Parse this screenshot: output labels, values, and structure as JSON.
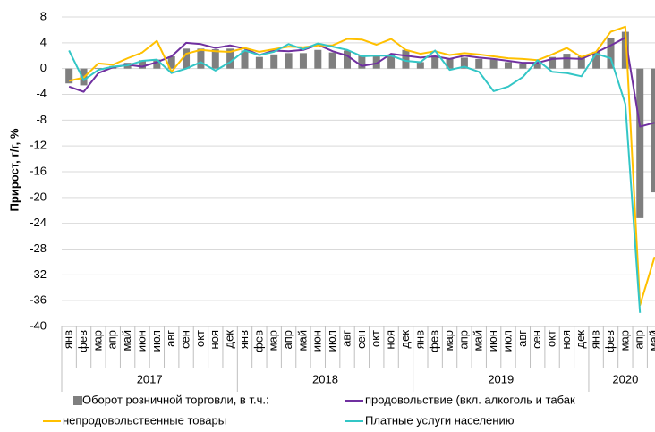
{
  "chart_data": {
    "type": "bar_line",
    "y_label": "Прирост, г/г, %",
    "category_groups": [
      {
        "label": "2017",
        "categories": [
          "янв",
          "фев",
          "мар",
          "апр",
          "май",
          "июн",
          "июл",
          "авг",
          "сен",
          "окт",
          "ноя",
          "дек"
        ]
      },
      {
        "label": "2018",
        "categories": [
          "янв",
          "фев",
          "мар",
          "апр",
          "май",
          "июн",
          "июл",
          "авг",
          "сен",
          "окт",
          "ноя",
          "дек"
        ]
      },
      {
        "label": "2019",
        "categories": [
          "янв",
          "фев",
          "мар",
          "апр",
          "май",
          "июн",
          "июл",
          "авг",
          "сен",
          "окт",
          "ноя",
          "дек"
        ]
      },
      {
        "label": "2020",
        "categories": [
          "янв",
          "фев",
          "мар",
          "апр",
          "май"
        ]
      }
    ],
    "ylim": [
      -40,
      8
    ],
    "yticks": [
      8,
      4,
      0,
      -4,
      -8,
      -12,
      -16,
      -20,
      -24,
      -28,
      -32,
      -36,
      -40
    ],
    "grid": true,
    "series": [
      {
        "name": "Оборот розничной торговли, в т.ч.:",
        "kind": "bar",
        "color": "#7f7f7f",
        "values": [
          -2.3,
          -2.6,
          0.1,
          0.4,
          0.9,
          1.3,
          1.4,
          1.9,
          3.1,
          3.1,
          3.0,
          3.1,
          2.8,
          1.8,
          2.2,
          2.4,
          2.4,
          2.9,
          2.5,
          2.8,
          2.1,
          1.9,
          2.2,
          2.9,
          1.0,
          2.0,
          1.6,
          1.7,
          1.5,
          1.4,
          1.0,
          0.8,
          0.7,
          1.8,
          2.3,
          1.9,
          2.6,
          4.7,
          5.7,
          -23.2,
          -19.2
        ]
      },
      {
        "name": "продовольствие (вкл. алкоголь и табак",
        "kind": "line",
        "color": "#7030a0",
        "values": [
          -2.8,
          -3.6,
          -0.7,
          0.2,
          0.6,
          0.3,
          1.0,
          1.9,
          4.0,
          3.8,
          3.2,
          3.6,
          3.1,
          2.1,
          2.8,
          2.7,
          2.9,
          3.7,
          2.7,
          2.0,
          0.4,
          0.8,
          2.3,
          2.0,
          1.7,
          1.9,
          1.5,
          2.0,
          1.7,
          1.5,
          1.2,
          0.9,
          0.9,
          1.5,
          1.6,
          1.5,
          2.5,
          3.6,
          4.8,
          -9.0,
          -8.4
        ]
      },
      {
        "name": "непродовольственные товары",
        "kind": "line",
        "color": "#ffc000",
        "values": [
          -1.9,
          -1.4,
          0.8,
          0.6,
          1.6,
          2.5,
          4.3,
          -0.5,
          2.3,
          2.9,
          2.7,
          2.6,
          3.2,
          2.6,
          3.0,
          3.4,
          3.3,
          3.6,
          3.6,
          4.6,
          4.5,
          3.7,
          4.6,
          2.9,
          2.3,
          2.7,
          2.1,
          2.4,
          2.2,
          1.9,
          1.6,
          1.5,
          1.3,
          2.2,
          3.2,
          1.8,
          2.6,
          5.7,
          6.5,
          -36.7,
          -29.2
        ]
      },
      {
        "name": "Платные услуги населению",
        "kind": "line",
        "color": "#33c6c6",
        "values": [
          2.8,
          -1.8,
          -0.2,
          0.3,
          0.5,
          1.2,
          1.4,
          -0.7,
          0.0,
          1.0,
          -0.3,
          1.0,
          2.8,
          2.1,
          2.6,
          3.8,
          3.0,
          3.9,
          3.4,
          2.9,
          1.9,
          2.0,
          2.0,
          1.2,
          1.0,
          2.8,
          -0.2,
          0.3,
          -0.5,
          -3.5,
          -2.8,
          -1.3,
          1.3,
          -0.5,
          -0.7,
          -1.2,
          2.3,
          1.6,
          -5.5,
          -37.9,
          null
        ]
      }
    ]
  }
}
